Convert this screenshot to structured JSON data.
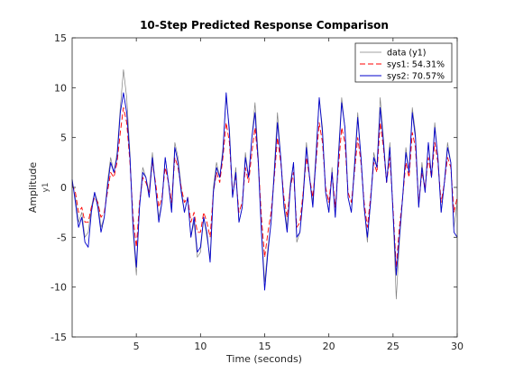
{
  "chart_data": {
    "type": "line",
    "title": "10-Step Predicted Response Comparison",
    "xlabel": "Time (seconds)",
    "ylabel": "Amplitude",
    "channel_label": "y1",
    "xlim": [
      0,
      30
    ],
    "ylim": [
      -15,
      15
    ],
    "xticks": [
      5,
      10,
      15,
      20,
      25,
      30
    ],
    "yticks": [
      -15,
      -10,
      -5,
      0,
      5,
      10,
      15
    ],
    "xtick_labels": [
      "5",
      "10",
      "15",
      "20",
      "25",
      "30"
    ],
    "ytick_labels": [
      "-15",
      "-10",
      "-5",
      "0",
      "5",
      "10",
      "15"
    ],
    "grid": false,
    "legend_position": "top-right",
    "series": [
      {
        "name": "data (y1)",
        "color": "#808080",
        "dash": "solid",
        "x": [
          0,
          0.25,
          0.5,
          0.75,
          1,
          1.25,
          1.5,
          1.75,
          2,
          2.25,
          2.5,
          2.75,
          3,
          3.25,
          3.5,
          3.75,
          4,
          4.25,
          4.5,
          4.75,
          5,
          5.25,
          5.5,
          5.75,
          6,
          6.25,
          6.5,
          6.75,
          7,
          7.25,
          7.5,
          7.75,
          8,
          8.25,
          8.5,
          8.75,
          9,
          9.25,
          9.5,
          9.75,
          10,
          10.25,
          10.5,
          10.75,
          11,
          11.25,
          11.5,
          11.75,
          12,
          12.25,
          12.5,
          12.75,
          13,
          13.25,
          13.5,
          13.75,
          14,
          14.25,
          14.5,
          14.75,
          15,
          15.25,
          15.5,
          15.75,
          16,
          16.25,
          16.5,
          16.75,
          17,
          17.25,
          17.5,
          17.75,
          18,
          18.25,
          18.5,
          18.75,
          19,
          19.25,
          19.5,
          19.75,
          20,
          20.25,
          20.5,
          20.75,
          21,
          21.25,
          21.5,
          21.75,
          22,
          22.25,
          22.5,
          22.75,
          23,
          23.25,
          23.5,
          23.75,
          24,
          24.25,
          24.5,
          24.75,
          25,
          25.25,
          25.5,
          25.75,
          26,
          26.25,
          26.5,
          26.75,
          27,
          27.25,
          27.5,
          27.75,
          28,
          28.25,
          28.5,
          28.75,
          29,
          29.25,
          29.5,
          29.75,
          30
        ],
        "values": [
          0.5,
          -1.0,
          -3.5,
          -2.5,
          -5.0,
          -4.5,
          -2.0,
          -0.5,
          -1.5,
          -4.0,
          -3.0,
          0.5,
          3.0,
          1.5,
          3.5,
          8.0,
          11.8,
          9.0,
          3.5,
          -4.5,
          -8.8,
          -2.0,
          2.0,
          1.0,
          -0.5,
          3.5,
          0.0,
          -3.0,
          -1.5,
          3.0,
          0.5,
          -2.0,
          4.5,
          3.0,
          0.0,
          -2.5,
          -1.0,
          -5.0,
          -3.5,
          -7.0,
          -6.5,
          -3.0,
          -5.0,
          -7.0,
          0.0,
          2.5,
          1.0,
          4.0,
          9.0,
          6.0,
          -1.0,
          2.0,
          -3.5,
          -2.0,
          3.5,
          1.0,
          5.0,
          8.5,
          3.0,
          -4.0,
          -9.5,
          -6.0,
          -3.5,
          2.0,
          7.5,
          3.0,
          -1.5,
          -4.0,
          0.5,
          2.5,
          -5.5,
          -4.5,
          -0.5,
          4.5,
          1.0,
          -1.5,
          3.5,
          9.0,
          6.0,
          -0.5,
          -2.5,
          2.0,
          -3.0,
          3.5,
          9.0,
          6.0,
          -1.0,
          -2.5,
          2.5,
          7.5,
          3.0,
          -2.0,
          -5.5,
          -1.5,
          3.5,
          2.0,
          9.0,
          5.0,
          0.5,
          4.5,
          -2.5,
          -11.2,
          -5.5,
          -1.0,
          4.0,
          1.5,
          8.0,
          5.5,
          -2.0,
          2.5,
          -0.5,
          4.5,
          1.0,
          6.5,
          3.0,
          -2.5,
          0.5,
          4.5,
          2.5,
          -4.0,
          -1.5
        ]
      },
      {
        "name": "sys1: 54.31%",
        "color": "#ff0000",
        "dash": "dashed",
        "x": [
          0,
          0.25,
          0.5,
          0.75,
          1,
          1.25,
          1.5,
          1.75,
          2,
          2.25,
          2.5,
          2.75,
          3,
          3.25,
          3.5,
          3.75,
          4,
          4.25,
          4.5,
          4.75,
          5,
          5.25,
          5.5,
          5.75,
          6,
          6.25,
          6.5,
          6.75,
          7,
          7.25,
          7.5,
          7.75,
          8,
          8.25,
          8.5,
          8.75,
          9,
          9.25,
          9.5,
          9.75,
          10,
          10.25,
          10.5,
          10.75,
          11,
          11.25,
          11.5,
          11.75,
          12,
          12.25,
          12.5,
          12.75,
          13,
          13.25,
          13.5,
          13.75,
          14,
          14.25,
          14.5,
          14.75,
          15,
          15.25,
          15.5,
          15.75,
          16,
          16.25,
          16.5,
          16.75,
          17,
          17.25,
          17.5,
          17.75,
          18,
          18.25,
          18.5,
          18.75,
          19,
          19.25,
          19.5,
          19.75,
          20,
          20.25,
          20.5,
          20.75,
          21,
          21.25,
          21.5,
          21.75,
          22,
          22.25,
          22.5,
          22.75,
          23,
          23.25,
          23.5,
          23.75,
          24,
          24.25,
          24.5,
          24.75,
          25,
          25.25,
          25.5,
          25.75,
          26,
          26.25,
          26.5,
          26.75,
          27,
          27.25,
          27.5,
          27.75,
          28,
          28.25,
          28.5,
          28.75,
          29,
          29.25,
          29.5,
          29.75,
          30
        ],
        "values": [
          0.3,
          -0.5,
          -2.5,
          -2.0,
          -3.5,
          -3.5,
          -2.0,
          -1.0,
          -1.5,
          -3.0,
          -2.5,
          -0.5,
          1.5,
          1.0,
          2.5,
          5.5,
          8.0,
          6.5,
          2.5,
          -3.0,
          -6.0,
          -1.5,
          1.0,
          0.5,
          -0.5,
          2.5,
          0.5,
          -2.0,
          -1.0,
          2.0,
          0.5,
          -1.5,
          3.0,
          2.0,
          0.0,
          -1.5,
          -1.0,
          -3.5,
          -2.5,
          -4.5,
          -4.5,
          -2.5,
          -3.5,
          -5.0,
          -0.5,
          1.5,
          0.5,
          3.0,
          6.5,
          4.5,
          -0.5,
          1.0,
          -2.5,
          -1.5,
          2.0,
          0.5,
          3.5,
          6.0,
          2.5,
          -3.0,
          -7.0,
          -4.5,
          -2.5,
          1.0,
          5.0,
          2.5,
          -1.0,
          -3.0,
          0.0,
          1.5,
          -4.0,
          -3.5,
          -0.5,
          3.0,
          1.0,
          -1.0,
          2.5,
          6.5,
          4.5,
          0.0,
          -1.5,
          1.5,
          -2.0,
          2.0,
          6.0,
          4.5,
          -0.5,
          -1.5,
          1.5,
          5.0,
          2.5,
          -1.5,
          -4.0,
          -1.0,
          2.5,
          1.5,
          6.5,
          4.0,
          0.5,
          3.0,
          -2.0,
          -8.0,
          -4.0,
          -1.0,
          2.5,
          1.0,
          5.5,
          4.0,
          -1.5,
          1.5,
          0.0,
          3.0,
          1.0,
          4.5,
          2.5,
          -1.5,
          0.5,
          3.0,
          2.0,
          -2.5,
          -1.0
        ]
      },
      {
        "name": "sys2: 70.57%",
        "color": "#0000cc",
        "dash": "solid",
        "x": [
          0,
          0.25,
          0.5,
          0.75,
          1,
          1.25,
          1.5,
          1.75,
          2,
          2.25,
          2.5,
          2.75,
          3,
          3.25,
          3.5,
          3.75,
          4,
          4.25,
          4.5,
          4.75,
          5,
          5.25,
          5.5,
          5.75,
          6,
          6.25,
          6.5,
          6.75,
          7,
          7.25,
          7.5,
          7.75,
          8,
          8.25,
          8.5,
          8.75,
          9,
          9.25,
          9.5,
          9.75,
          10,
          10.25,
          10.5,
          10.75,
          11,
          11.25,
          11.5,
          11.75,
          12,
          12.25,
          12.5,
          12.75,
          13,
          13.25,
          13.5,
          13.75,
          14,
          14.25,
          14.5,
          14.75,
          15,
          15.25,
          15.5,
          15.75,
          16,
          16.25,
          16.5,
          16.75,
          17,
          17.25,
          17.5,
          17.75,
          18,
          18.25,
          18.5,
          18.75,
          19,
          19.25,
          19.5,
          19.75,
          20,
          20.25,
          20.5,
          20.75,
          21,
          21.25,
          21.5,
          21.75,
          22,
          22.25,
          22.5,
          22.75,
          23,
          23.25,
          23.5,
          23.75,
          24,
          24.25,
          24.5,
          24.75,
          25,
          25.25,
          25.5,
          25.75,
          26,
          26.25,
          26.5,
          26.75,
          27,
          27.25,
          27.5,
          27.75,
          28,
          28.25,
          28.5,
          28.75,
          29,
          29.25,
          29.5,
          29.75,
          30
        ],
        "values": [
          0.8,
          -1.5,
          -4.0,
          -3.0,
          -5.5,
          -6.0,
          -2.5,
          -0.5,
          -2.0,
          -4.5,
          -3.0,
          0.0,
          2.5,
          1.5,
          3.0,
          7.5,
          9.5,
          7.5,
          3.0,
          -4.0,
          -8.0,
          -2.0,
          1.5,
          1.0,
          -1.0,
          3.0,
          0.0,
          -3.5,
          -1.5,
          3.0,
          0.5,
          -2.5,
          4.0,
          2.5,
          -0.5,
          -2.5,
          -1.0,
          -5.0,
          -3.0,
          -6.5,
          -6.0,
          -3.0,
          -4.5,
          -7.5,
          -0.5,
          2.0,
          1.0,
          3.5,
          9.5,
          5.5,
          -1.0,
          1.5,
          -3.5,
          -2.0,
          3.0,
          1.0,
          5.0,
          7.5,
          2.5,
          -4.5,
          -10.3,
          -6.5,
          -3.5,
          1.5,
          6.5,
          3.0,
          -2.0,
          -4.5,
          0.0,
          2.5,
          -5.0,
          -4.5,
          -1.0,
          4.0,
          1.0,
          -2.0,
          3.0,
          9.0,
          5.5,
          -0.5,
          -2.5,
          1.5,
          -3.0,
          3.0,
          8.5,
          6.0,
          -1.0,
          -2.5,
          2.0,
          7.0,
          3.0,
          -2.0,
          -5.0,
          -1.5,
          3.0,
          2.0,
          8.0,
          4.5,
          0.5,
          4.0,
          -2.5,
          -8.8,
          -5.0,
          -1.0,
          3.5,
          1.5,
          7.5,
          5.0,
          -2.0,
          2.0,
          -0.5,
          4.5,
          1.0,
          6.0,
          3.0,
          -2.5,
          0.5,
          4.0,
          2.5,
          -4.5,
          -5.0
        ]
      }
    ]
  }
}
